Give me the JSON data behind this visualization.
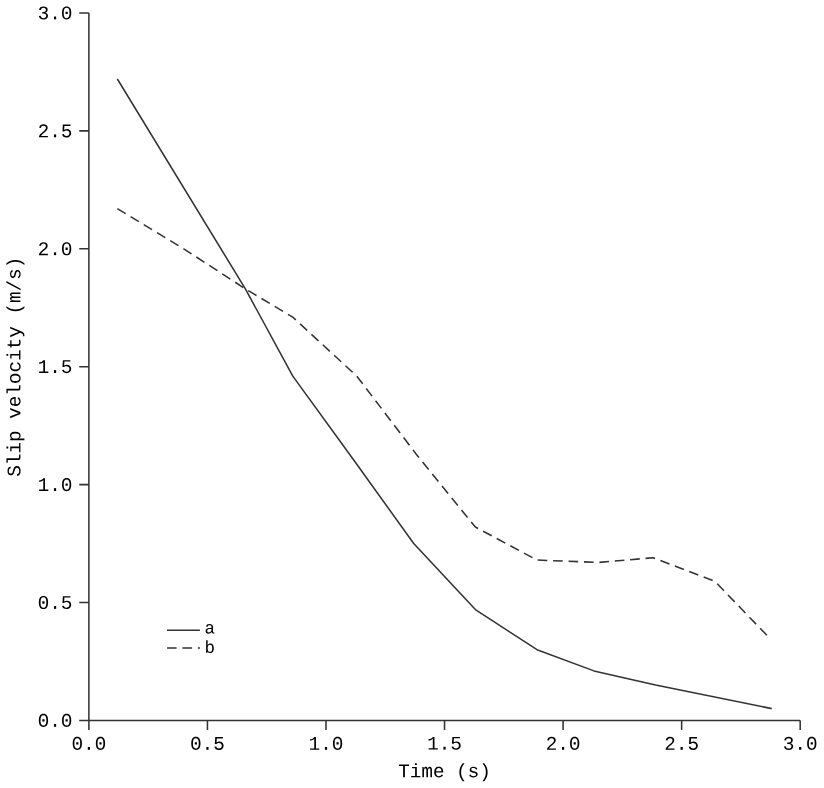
{
  "chart_data": {
    "type": "line",
    "xlabel": "Time (s)",
    "ylabel": "Slip velocity (m/s)",
    "xlim": [
      0,
      3
    ],
    "ylim": [
      0,
      3
    ],
    "xticks": [
      {
        "value": 0,
        "label": "0.0"
      },
      0.5,
      {
        "value": 1,
        "label": "1.0"
      },
      1.5,
      {
        "value": 2,
        "label": "2.0"
      },
      2.5,
      {
        "value": 3,
        "label": "3.0"
      }
    ],
    "yticks": [
      {
        "value": 0,
        "label": "0.0"
      },
      0.5,
      {
        "value": 1,
        "label": "1.0"
      },
      1.5,
      {
        "value": 2,
        "label": "2.0"
      },
      2.5,
      {
        "value": 3,
        "label": "3.0"
      }
    ],
    "legend": "bottom left",
    "grid": false,
    "series": [
      {
        "name": "a",
        "color": "#333333",
        "line_style": "solid",
        "x": [
          0.12,
          0.66,
          0.86,
          1.12,
          1.37,
          1.63,
          1.89,
          2.13,
          2.39,
          2.88
        ],
        "values": [
          2.72,
          1.83,
          1.46,
          1.1,
          0.75,
          0.47,
          0.3,
          0.21,
          0.15,
          0.05
        ]
      },
      {
        "name": "b",
        "color": "#333333",
        "line_style": "dashed",
        "x": [
          0.12,
          0.4,
          0.66,
          0.86,
          1.13,
          1.38,
          1.63,
          1.89,
          2.15,
          2.38,
          2.64,
          2.87
        ],
        "values": [
          2.17,
          2.0,
          1.83,
          1.71,
          1.46,
          1.13,
          0.82,
          0.68,
          0.67,
          0.69,
          0.59,
          0.35
        ]
      }
    ]
  }
}
